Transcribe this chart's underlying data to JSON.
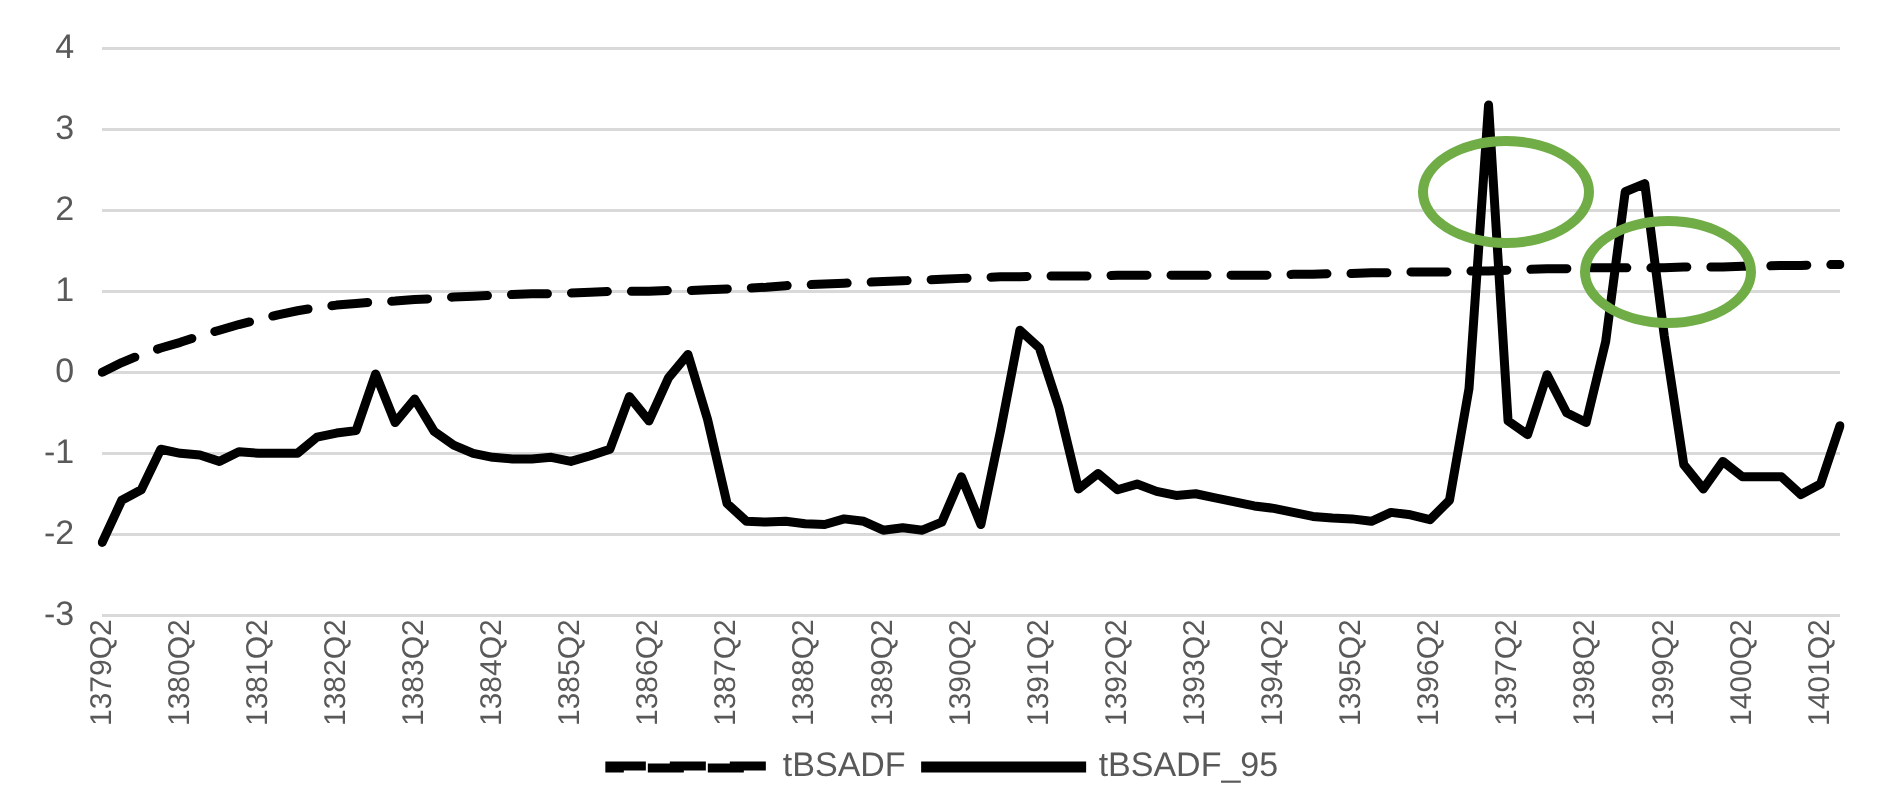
{
  "chart_data": {
    "type": "line",
    "categories": [
      "1379Q2",
      null,
      null,
      null,
      "1380Q2",
      null,
      null,
      null,
      "1381Q2",
      null,
      null,
      null,
      "1382Q2",
      null,
      null,
      null,
      "1383Q2",
      null,
      null,
      null,
      "1384Q2",
      null,
      null,
      null,
      "1385Q2",
      null,
      null,
      null,
      "1386Q2",
      null,
      null,
      null,
      "1387Q2",
      null,
      null,
      null,
      "1388Q2",
      null,
      null,
      null,
      "1389Q2",
      null,
      null,
      null,
      "1390Q2",
      null,
      null,
      null,
      "1391Q2",
      null,
      null,
      null,
      "1392Q2",
      null,
      null,
      null,
      "1393Q2",
      null,
      null,
      null,
      "1394Q2",
      null,
      null,
      null,
      "1395Q2",
      null,
      null,
      null,
      "1396Q2",
      null,
      null,
      null,
      "1397Q2",
      null,
      null,
      null,
      "1398Q2",
      null,
      null,
      null,
      "1399Q2",
      null,
      null,
      null,
      "1400Q2",
      null,
      null,
      null,
      "1401Q2",
      null
    ],
    "series": [
      {
        "name": "tBSADF",
        "color": "#000000",
        "line_style": "dashed",
        "values": [
          0,
          0.12,
          0.22,
          0.3,
          0.37,
          0.45,
          0.52,
          0.59,
          0.65,
          0.71,
          0.76,
          0.8,
          0.83,
          0.85,
          0.87,
          0.88,
          0.9,
          0.91,
          0.93,
          0.94,
          0.95,
          0.96,
          0.97,
          0.97,
          0.98,
          0.99,
          1,
          1,
          1,
          1.01,
          1.01,
          1.02,
          1.03,
          1.04,
          1.05,
          1.07,
          1.08,
          1.09,
          1.1,
          1.11,
          1.12,
          1.13,
          1.14,
          1.15,
          1.16,
          1.17,
          1.18,
          1.18,
          1.19,
          1.19,
          1.19,
          1.19,
          1.2,
          1.2,
          1.2,
          1.2,
          1.2,
          1.2,
          1.2,
          1.2,
          1.2,
          1.21,
          1.21,
          1.22,
          1.22,
          1.23,
          1.23,
          1.24,
          1.24,
          1.24,
          1.25,
          1.25,
          1.26,
          1.27,
          1.28,
          1.28,
          1.29,
          1.29,
          1.29,
          1.29,
          1.29,
          1.3,
          1.3,
          1.3,
          1.31,
          1.31,
          1.32,
          1.32,
          1.33,
          1.33
        ]
      },
      {
        "name": "tBSADF_95",
        "color": "#000000",
        "line_style": "solid",
        "values": [
          -2.1,
          -1.58,
          -1.45,
          -0.95,
          -1,
          -1.02,
          -1.1,
          -0.98,
          -1,
          -1,
          -1,
          -0.8,
          -0.75,
          -0.72,
          -0.02,
          -0.62,
          -0.33,
          -0.73,
          -0.9,
          -1,
          -1.05,
          -1.07,
          -1.07,
          -1.05,
          -1.1,
          -1.03,
          -0.95,
          -0.3,
          -0.6,
          -0.07,
          0.22,
          -0.58,
          -1.62,
          -1.84,
          -1.85,
          -1.84,
          -1.87,
          -1.88,
          -1.81,
          -1.84,
          -1.95,
          -1.92,
          -1.95,
          -1.85,
          -1.29,
          -1.88,
          -0.73,
          0.52,
          0.3,
          -0.44,
          -1.44,
          -1.25,
          -1.45,
          -1.38,
          -1.47,
          -1.52,
          -1.5,
          -1.55,
          -1.6,
          -1.65,
          -1.68,
          -1.73,
          -1.78,
          -1.8,
          -1.81,
          -1.84,
          -1.73,
          -1.76,
          -1.82,
          -1.58,
          -0.2,
          3.3,
          -0.6,
          -0.77,
          -0.03,
          -0.5,
          -0.62,
          0.38,
          2.23,
          2.33,
          0.45,
          -1.14,
          -1.44,
          -1.1,
          -1.29,
          -1.29,
          -1.29,
          -1.51,
          -1.38,
          -0.66
        ]
      }
    ],
    "ylim": [
      -3,
      4
    ],
    "yticks": [
      -3,
      -2,
      -1,
      0,
      1,
      2,
      3,
      4
    ],
    "grid": "y",
    "legend": "bottom",
    "marker": "none"
  }
}
